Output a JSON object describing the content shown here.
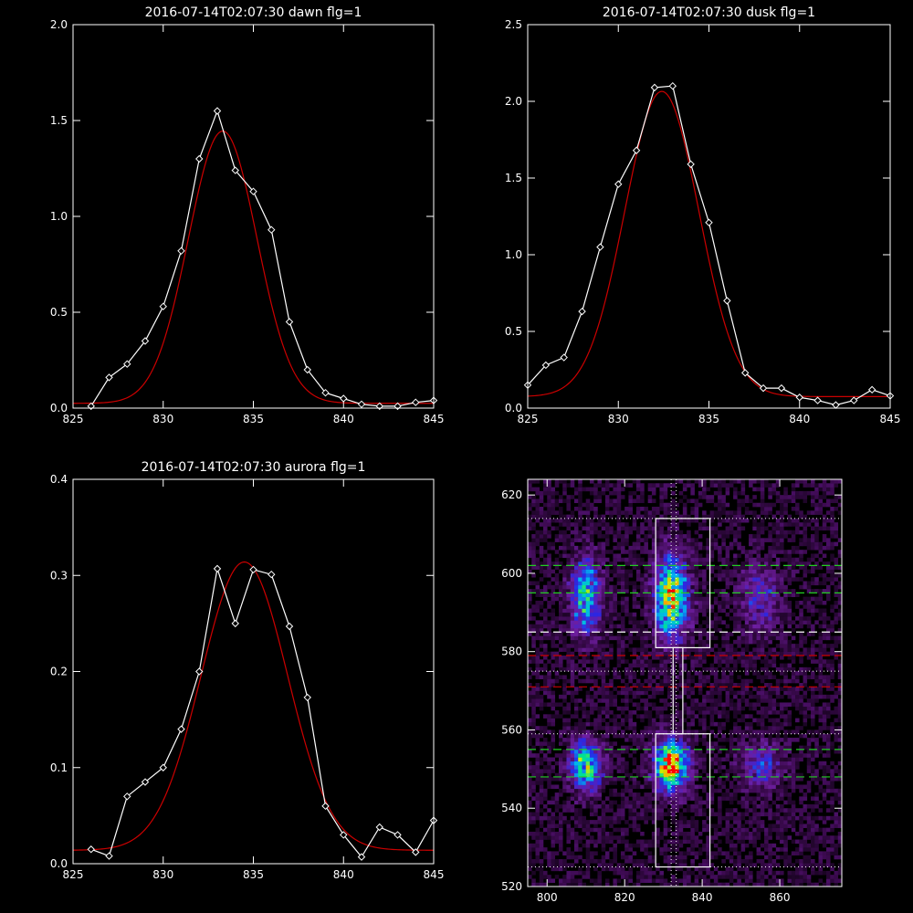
{
  "chart_data": [
    {
      "panel": "dawn",
      "type": "line",
      "title": "2016-07-14T02:07:30 dawn flg=1",
      "xlim": [
        825,
        845
      ],
      "ylim": [
        0,
        2.0
      ],
      "xticks": [
        825,
        830,
        835,
        840,
        845
      ],
      "yticks": [
        0.0,
        0.5,
        1.0,
        1.5,
        2.0
      ],
      "ytick_labels": [
        "0.0",
        "0.5",
        "1.0",
        "1.5",
        "2.0"
      ],
      "colors": {
        "data": "#ffffff",
        "fit": "#cc0000"
      },
      "series": [
        {
          "kind": "data",
          "x": [
            826,
            827,
            828,
            829,
            830,
            831,
            832,
            833,
            834,
            835,
            836,
            837,
            838,
            839,
            840,
            841,
            842,
            843,
            844,
            845
          ],
          "y": [
            0.01,
            0.16,
            0.23,
            0.35,
            0.53,
            0.82,
            1.3,
            1.55,
            1.24,
            1.13,
            0.93,
            0.45,
            0.2,
            0.08,
            0.05,
            0.02,
            0.01,
            0.01,
            0.03,
            0.04
          ]
        },
        {
          "kind": "fit",
          "model": "gaussian",
          "amplitude": 1.42,
          "center": 833.3,
          "sigma": 1.9,
          "offset": 0.025
        }
      ]
    },
    {
      "panel": "dusk",
      "type": "line",
      "title": "2016-07-14T02:07:30 dusk flg=1",
      "xlim": [
        825,
        845
      ],
      "ylim": [
        0,
        2.5
      ],
      "xticks": [
        825,
        830,
        835,
        840,
        845
      ],
      "yticks": [
        0.0,
        0.5,
        1.0,
        1.5,
        2.0,
        2.5
      ],
      "ytick_labels": [
        "0.0",
        "0.5",
        "1.0",
        "1.5",
        "2.0",
        "2.5"
      ],
      "colors": {
        "data": "#ffffff",
        "fit": "#cc0000"
      },
      "series": [
        {
          "kind": "data",
          "x": [
            825,
            826,
            827,
            828,
            829,
            830,
            831,
            832,
            833,
            834,
            835,
            836,
            837,
            838,
            839,
            840,
            841,
            842,
            843,
            844,
            845
          ],
          "y": [
            0.15,
            0.28,
            0.33,
            0.63,
            1.05,
            1.46,
            1.68,
            2.09,
            2.1,
            1.59,
            1.21,
            0.7,
            0.23,
            0.13,
            0.13,
            0.07,
            0.05,
            0.02,
            0.05,
            0.12,
            0.08
          ]
        },
        {
          "kind": "fit",
          "model": "gaussian",
          "amplitude": 1.99,
          "center": 832.4,
          "sigma": 2.05,
          "offset": 0.075
        }
      ]
    },
    {
      "panel": "aurora",
      "type": "line",
      "title": "2016-07-14T02:07:30 aurora flg=1",
      "xlim": [
        825,
        845
      ],
      "ylim": [
        0,
        0.4
      ],
      "xticks": [
        825,
        830,
        835,
        840,
        845
      ],
      "yticks": [
        0.0,
        0.1,
        0.2,
        0.3,
        0.4
      ],
      "ytick_labels": [
        "0.0",
        "0.1",
        "0.2",
        "0.3",
        "0.4"
      ],
      "colors": {
        "data": "#ffffff",
        "fit": "#cc0000"
      },
      "series": [
        {
          "kind": "data",
          "x": [
            826,
            827,
            828,
            829,
            830,
            831,
            832,
            833,
            834,
            835,
            836,
            837,
            838,
            839,
            840,
            841,
            842,
            843,
            844,
            845
          ],
          "y": [
            0.015,
            0.008,
            0.07,
            0.085,
            0.1,
            0.14,
            0.2,
            0.307,
            0.25,
            0.306,
            0.301,
            0.247,
            0.173,
            0.06,
            0.03,
            0.007,
            0.038,
            0.03,
            0.012,
            0.045
          ]
        },
        {
          "kind": "fit",
          "model": "gaussian",
          "amplitude": 0.3,
          "center": 834.5,
          "sigma": 2.4,
          "offset": 0.014
        }
      ]
    },
    {
      "panel": "image",
      "type": "heatmap",
      "title": "",
      "xlim": [
        795,
        876
      ],
      "ylim": [
        520,
        624
      ],
      "xticks": [
        800,
        820,
        840,
        860
      ],
      "yticks": [
        520,
        540,
        560,
        580,
        600,
        620
      ],
      "colors": {
        "box": "#ffffff",
        "green": "#22cc22",
        "red": "#cc0000",
        "white_dash": "#ffffff",
        "dotted": "#ffffff"
      },
      "blobs": [
        {
          "x": 810,
          "y": 594,
          "sx": 2.8,
          "sy": 7.0,
          "amp": 0.5
        },
        {
          "x": 832,
          "y": 594,
          "sx": 3.0,
          "sy": 7.5,
          "amp": 0.72
        },
        {
          "x": 855,
          "y": 594,
          "sx": 3.5,
          "sy": 6.0,
          "amp": 0.28
        },
        {
          "x": 810,
          "y": 551,
          "sx": 2.8,
          "sy": 4.5,
          "amp": 0.62
        },
        {
          "x": 832,
          "y": 551,
          "sx": 3.0,
          "sy": 4.5,
          "amp": 0.85
        },
        {
          "x": 855,
          "y": 551,
          "sx": 3.5,
          "sy": 4.0,
          "amp": 0.33
        }
      ],
      "boxes": [
        {
          "x0": 828,
          "x1": 842,
          "y0": 581,
          "y1": 614
        },
        {
          "x0": 828,
          "x1": 842,
          "y0": 525,
          "y1": 559
        },
        {
          "x0": 832.5,
          "x1": 835,
          "y0": 559,
          "y1": 581
        }
      ],
      "hlines": [
        {
          "y": 614,
          "style": "dotted",
          "color": "dotted"
        },
        {
          "y": 602,
          "style": "dashed",
          "color": "green"
        },
        {
          "y": 595,
          "style": "dashed",
          "color": "green"
        },
        {
          "y": 585,
          "style": "dashed",
          "color": "white_dash"
        },
        {
          "y": 579,
          "style": "dashed",
          "color": "red"
        },
        {
          "y": 575,
          "style": "dotted",
          "color": "dotted"
        },
        {
          "y": 571,
          "style": "dashed",
          "color": "red"
        },
        {
          "y": 559,
          "style": "dotted",
          "color": "dotted"
        },
        {
          "y": 555,
          "style": "dashed",
          "color": "green"
        },
        {
          "y": 548,
          "style": "dashed",
          "color": "green"
        },
        {
          "y": 525,
          "style": "dotted",
          "color": "dotted"
        }
      ],
      "vlines": [
        {
          "x": 832.0,
          "style": "dotted"
        },
        {
          "x": 833.3,
          "style": "dotted"
        }
      ]
    }
  ]
}
